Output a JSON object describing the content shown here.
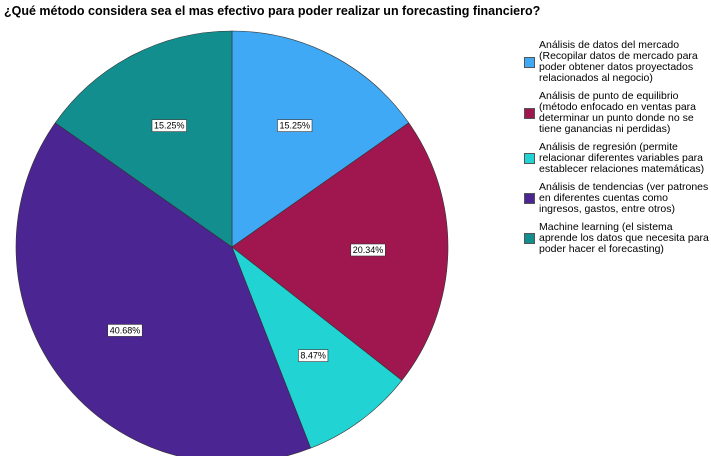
{
  "chart_data": {
    "type": "pie",
    "title": "¿Qué método considera sea el mas efectivo para poder realizar un forecasting financiero?",
    "categories": [
      "Análisis de datos del mercado (Recopilar datos de mercado para poder obtener datos proyectados relacionados al negocio)",
      "Análisis de punto de equilibrio (método enfocado en ventas para determinar un punto donde no se tiene ganancias ni perdidas)",
      "Análisis de regresión (permite relacionar diferentes variables para establecer relaciones matemáticas)",
      "Análisis de tendencias (ver patrones en diferentes cuentas como ingresos, gastos, entre otros)",
      "Machine learning (el sistema aprende los datos que necesita para poder hacer el forecasting)"
    ],
    "values": [
      15.25,
      20.34,
      8.47,
      40.68,
      15.25
    ],
    "value_labels": [
      "15.25%",
      "20.34%",
      "8.47%",
      "40.68%",
      "15.25%"
    ],
    "colors": [
      "#3fa9f5",
      "#a0174f",
      "#22d3d3",
      "#4b2591",
      "#128e8e"
    ],
    "legend": "right"
  }
}
